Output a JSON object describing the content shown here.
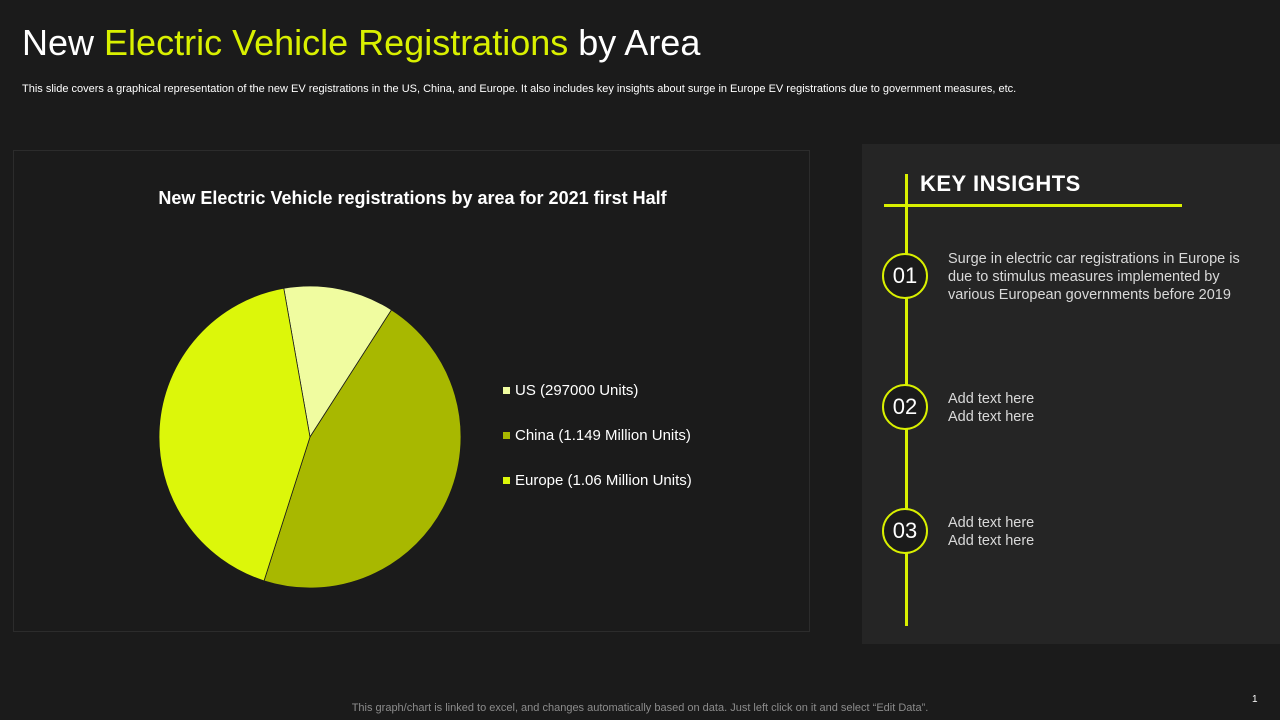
{
  "slide": {
    "title_part1": "New",
    "title_accent": "Electric Vehicle Registrations",
    "title_part2": "by Area",
    "subtitle": "This slide covers a graphical representation of the new EV  registrations in the US, China, and Europe. It also includes key insights about surge in Europe EV registrations due to government measures, etc.",
    "footer": "This graph/chart is linked to excel,  and changes automatically based on data. Just left click on it and select “Edit Data”.",
    "page_number": "1"
  },
  "colors": {
    "accent": "#d9f000",
    "background": "#1b1b1b",
    "panel": "#252525"
  },
  "chart_data": {
    "type": "pie",
    "title": "New Electric Vehicle registrations by area for 2021 first Half",
    "legend_position": "right",
    "categories": [
      "US (297000 Units)",
      "China (1.149 Million Units)",
      "Europe (1.06 Million Units)"
    ],
    "values": [
      297000,
      1149000,
      1060000
    ],
    "colors": [
      "#f0fca0",
      "#a8b800",
      "#dcf70a"
    ]
  },
  "insights": {
    "title": "KEY INSIGHTS",
    "items": [
      {
        "number": "01",
        "lines": [
          "Surge in electric car registrations in Europe is",
          "due to stimulus measures implemented by",
          "various European governments before 2019"
        ]
      },
      {
        "number": "02",
        "lines": [
          "Add text here",
          "Add text here"
        ]
      },
      {
        "number": "03",
        "lines": [
          "Add text here",
          "Add text here"
        ]
      }
    ]
  }
}
